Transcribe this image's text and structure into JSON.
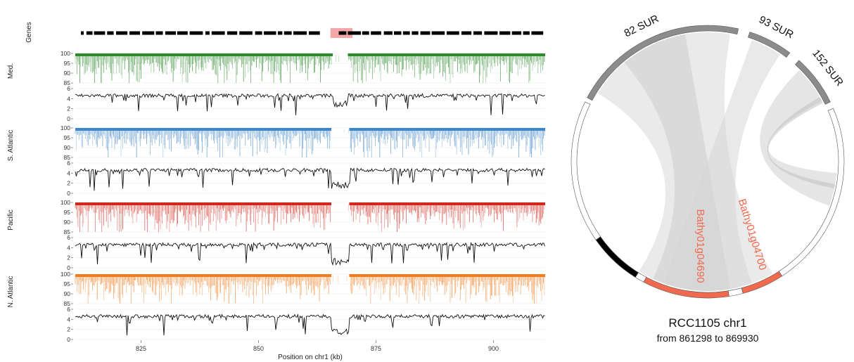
{
  "chart_data": [
    {
      "type": "line",
      "gene_track": {
        "label": "Genes",
        "highlight_kb": [
          866.2,
          869.1
        ]
      },
      "xlabel": "Position on chr1 (kb)",
      "x_ticks": [
        "825",
        "850",
        "875",
        "900"
      ],
      "xlim": [
        811,
        911
      ],
      "panels": [
        {
          "name": "Med.",
          "color": "#2e8b2e",
          "identity_ylim": [
            85,
            100
          ],
          "identity_ticks": [
            "100",
            "95",
            "90",
            "85"
          ],
          "depth_ylim": [
            0,
            6
          ],
          "depth_ticks": [
            "6",
            "4",
            "2",
            "0"
          ],
          "gap_kb": [
            865.8,
            869.0
          ],
          "gap_depth": 2.2
        },
        {
          "name": "S. Atlantic",
          "color": "#3f86c6",
          "identity_ylim": [
            85,
            100
          ],
          "identity_ticks": [
            "100",
            "95",
            "90",
            "85"
          ],
          "depth_ylim": [
            0,
            6
          ],
          "depth_ticks": [
            "6",
            "4",
            "2",
            "0"
          ],
          "gap_kb": [
            865.5,
            869.3
          ],
          "gap_depth": 0.9
        },
        {
          "name": "Pacific",
          "color": "#d0281c",
          "identity_ylim": [
            85,
            100
          ],
          "identity_ticks": [
            "100",
            "95",
            "90",
            "85"
          ],
          "depth_ylim": [
            0,
            6
          ],
          "depth_ticks": [
            "6",
            "4",
            "2",
            "0"
          ],
          "gap_kb": [
            865.5,
            869.3
          ],
          "gap_depth": 0.6
        },
        {
          "name": "N. Atlantic",
          "color": "#f07d1f",
          "identity_ylim": [
            85,
            100
          ],
          "identity_ticks": [
            "100",
            "95",
            "90",
            "85"
          ],
          "depth_ylim": [
            0,
            6
          ],
          "depth_ticks": [
            "6",
            "4",
            "2",
            "0",
            "-"
          ],
          "gap_kb": [
            865.5,
            869.3
          ],
          "gap_depth": 0.9
        }
      ],
      "depth_baseline": 4.6
    },
    {
      "type": "chord",
      "title": "RCC1105 chr1",
      "subtitle": "from 861298 to 869930",
      "arcs": [
        {
          "label": "82 SUR",
          "color": "#8c8c8c",
          "start_deg": -62,
          "end_deg": 13
        },
        {
          "label": "93 SUR",
          "color": "#8c8c8c",
          "start_deg": 18,
          "end_deg": 37
        },
        {
          "label": "152 SUR",
          "color": "#8c8c8c",
          "start_deg": 42,
          "end_deg": 64
        },
        {
          "label": "",
          "color": "#ffffff",
          "start_deg": 67,
          "end_deg": 147
        },
        {
          "label": "Bathy01g04700",
          "color": "#f06a4f",
          "start_deg": 147,
          "end_deg": 165
        },
        {
          "label": "",
          "color": "#ffffff",
          "start_deg": 165,
          "end_deg": 171
        },
        {
          "label": "Bathy01g04690",
          "color": "#f06a4f",
          "start_deg": 171,
          "end_deg": 208
        },
        {
          "label": "",
          "color": "#ffffff",
          "start_deg": 208,
          "end_deg": 212
        },
        {
          "label": "",
          "color": "#000000",
          "start_deg": 212,
          "end_deg": 235
        },
        {
          "label": "",
          "color": "#ffffff",
          "start_deg": 235,
          "end_deg": 296
        }
      ]
    }
  ]
}
